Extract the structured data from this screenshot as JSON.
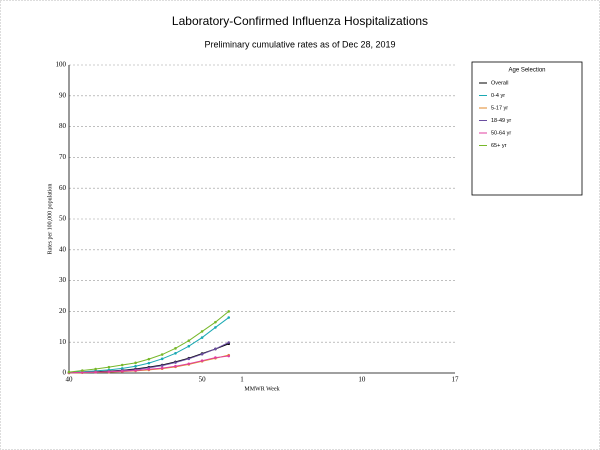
{
  "chart_data": {
    "type": "line",
    "title": "Laboratory-Confirmed Influenza Hospitalizations",
    "subtitle": "Preliminary cumulative rates as of Dec 28, 2019",
    "x_label": "MMWR Week",
    "y_label": "Rates per 100,000 population",
    "legend_title": "Age Selection",
    "legend_position": "right",
    "grid": true,
    "categories": [
      "40",
      null,
      null,
      null,
      null,
      null,
      null,
      null,
      null,
      null,
      "50",
      null,
      null,
      "1",
      null,
      null,
      null,
      null,
      null,
      null,
      null,
      null,
      "10",
      null,
      null,
      null,
      null,
      null,
      null,
      "17"
    ],
    "ylim": [
      0,
      100
    ],
    "yticks": [
      0,
      10,
      20,
      30,
      40,
      50,
      60,
      70,
      80,
      90,
      100
    ],
    "series": [
      {
        "name": "Overall",
        "color": "#000000",
        "values": [
          0.1,
          0.2,
          0.4,
          0.6,
          0.9,
          1.3,
          1.9,
          2.6,
          3.6,
          4.8,
          6.3,
          7.8,
          9.5,
          null,
          null,
          null,
          null,
          null,
          null,
          null,
          null,
          null,
          null,
          null,
          null,
          null,
          null,
          null,
          null,
          null
        ]
      },
      {
        "name": "0-4 yr",
        "color": "#1ba9b3",
        "values": [
          0.2,
          0.4,
          0.7,
          1.0,
          1.5,
          2.2,
          3.2,
          4.6,
          6.4,
          8.7,
          11.5,
          14.8,
          18.0,
          null,
          null,
          null,
          null,
          null,
          null,
          null,
          null,
          null,
          null,
          null,
          null,
          null,
          null,
          null,
          null,
          null
        ]
      },
      {
        "name": "5-17 yr",
        "color": "#e28a2b",
        "values": [
          0.0,
          0.1,
          0.2,
          0.3,
          0.5,
          0.7,
          1.0,
          1.4,
          2.0,
          2.8,
          3.8,
          4.8,
          5.8,
          null,
          null,
          null,
          null,
          null,
          null,
          null,
          null,
          null,
          null,
          null,
          null,
          null,
          null,
          null,
          null,
          null
        ]
      },
      {
        "name": "18-49 yr",
        "color": "#6a4ea0",
        "values": [
          0.1,
          0.2,
          0.3,
          0.5,
          0.8,
          1.1,
          1.7,
          2.4,
          3.4,
          4.6,
          6.1,
          7.8,
          9.9,
          null,
          null,
          null,
          null,
          null,
          null,
          null,
          null,
          null,
          null,
          null,
          null,
          null,
          null,
          null,
          null,
          null
        ]
      },
      {
        "name": "50-64 yr",
        "color": "#e040a0",
        "values": [
          0.1,
          0.2,
          0.3,
          0.4,
          0.6,
          0.8,
          1.2,
          1.6,
          2.2,
          3.0,
          4.0,
          5.0,
          5.5,
          null,
          null,
          null,
          null,
          null,
          null,
          null,
          null,
          null,
          null,
          null,
          null,
          null,
          null,
          null,
          null,
          null
        ]
      },
      {
        "name": "65+ yr",
        "color": "#77b82a",
        "values": [
          0.3,
          0.8,
          1.3,
          1.9,
          2.6,
          3.3,
          4.5,
          6.0,
          8.0,
          10.5,
          13.5,
          16.5,
          20.0,
          null,
          null,
          null,
          null,
          null,
          null,
          null,
          null,
          null,
          null,
          null,
          null,
          null,
          null,
          null,
          null,
          null
        ]
      }
    ]
  }
}
